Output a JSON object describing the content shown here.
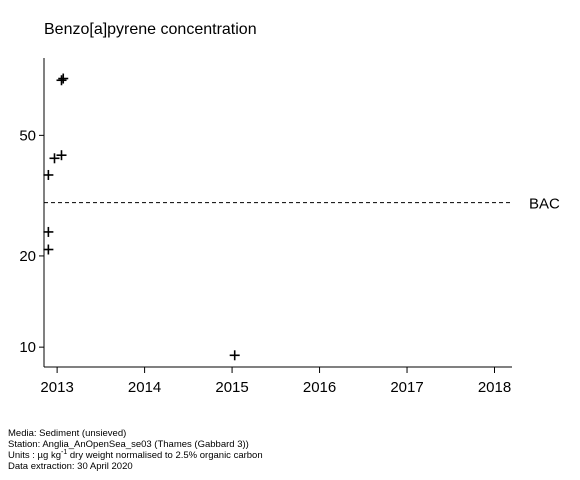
{
  "chart_data": {
    "type": "scatter",
    "title": "Benzo[a]pyrene concentration",
    "xlabel": "",
    "ylabel": "",
    "y_scale": "log",
    "xlim": [
      2012.85,
      2018.2
    ],
    "ylim": [
      8.6,
      90
    ],
    "x_ticks": [
      2013,
      2014,
      2015,
      2016,
      2017,
      2018
    ],
    "y_ticks": [
      10,
      20,
      50
    ],
    "points": [
      {
        "x": 2012.9,
        "y": 24
      },
      {
        "x": 2012.9,
        "y": 21
      },
      {
        "x": 2012.9,
        "y": 37
      },
      {
        "x": 2012.97,
        "y": 42
      },
      {
        "x": 2013.05,
        "y": 43
      },
      {
        "x": 2013.05,
        "y": 76
      },
      {
        "x": 2013.07,
        "y": 77
      },
      {
        "x": 2015.03,
        "y": 9.4
      }
    ],
    "reference_lines": [
      {
        "name": "BAC",
        "y": 30,
        "style": "dashed"
      }
    ],
    "grid": false,
    "marker": "plus"
  },
  "footer": {
    "media": "Media: Sediment (unsieved)",
    "station": "Station: Anglia_AnOpenSea_se03 (Thames (Gabbard 3))",
    "units_prefix": "Units : µg kg",
    "units_sup": "-1",
    "units_suffix": " dry weight normalised to 2.5% organic carbon",
    "extraction": "Data extraction: 30 April 2020"
  }
}
